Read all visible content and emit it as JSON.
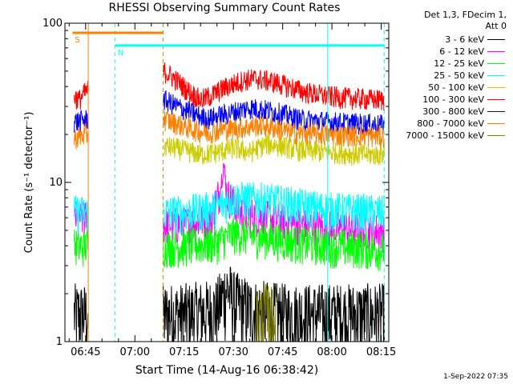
{
  "chart_data": {
    "type": "line",
    "title": "RHESSI Observing Summary Count Rates",
    "xlabel": "Start Time (14-Aug-16 06:38:42)",
    "ylabel": "Count Rate (s⁻¹ detector⁻¹)",
    "yscale": "log",
    "ylim": [
      1,
      100
    ],
    "xlim_minutes": [
      38.7,
      137.3
    ],
    "xticks": [
      {
        "label": "06:45",
        "minute": 45
      },
      {
        "label": "07:00",
        "minute": 60
      },
      {
        "label": "07:15",
        "minute": 75
      },
      {
        "label": "07:30",
        "minute": 90
      },
      {
        "label": "07:45",
        "minute": 105
      },
      {
        "label": "08:00",
        "minute": 120
      },
      {
        "label": "08:15",
        "minute": 135
      }
    ],
    "yticks": [
      {
        "label": "1",
        "value": 1
      },
      {
        "label": "10",
        "value": 10
      },
      {
        "label": "100",
        "value": 100
      }
    ],
    "grid": false,
    "legend_placement": "top-right",
    "legend_header": [
      "Det 1,3, FDecim 1,",
      "Att 0"
    ],
    "gaps": [
      [
        45.8,
        68.6
      ]
    ],
    "series": [
      {
        "name": "3 - 6 keV",
        "color": "#000000",
        "points": [
          [
            41.5,
            1.5
          ],
          [
            45.5,
            1.5
          ],
          [
            69,
            1.5
          ],
          [
            75,
            1.5
          ],
          [
            85,
            1.6
          ],
          [
            88,
            2.2
          ],
          [
            90,
            1.8
          ],
          [
            95,
            1.6
          ],
          [
            105,
            1.5
          ],
          [
            120,
            1.5
          ],
          [
            136,
            1.5
          ]
        ]
      },
      {
        "name": "6 - 12 keV",
        "color": "#ff00ff",
        "points": [
          [
            41.5,
            6.0
          ],
          [
            45.5,
            6.0
          ],
          [
            69,
            5.5
          ],
          [
            75,
            5.5
          ],
          [
            83,
            6.0
          ],
          [
            86,
            9.0
          ],
          [
            87,
            13.0
          ],
          [
            88,
            8.5
          ],
          [
            92,
            6.5
          ],
          [
            100,
            6.0
          ],
          [
            110,
            5.5
          ],
          [
            120,
            5.2
          ],
          [
            136,
            5.0
          ]
        ]
      },
      {
        "name": "12 - 25 keV",
        "color": "#00ff00",
        "points": [
          [
            41.5,
            4.0
          ],
          [
            45.5,
            4.0
          ],
          [
            69,
            4.0
          ],
          [
            75,
            4.0
          ],
          [
            85,
            4.2
          ],
          [
            90,
            4.8
          ],
          [
            100,
            4.5
          ],
          [
            110,
            4.2
          ],
          [
            120,
            4.0
          ],
          [
            136,
            3.8
          ]
        ]
      },
      {
        "name": "25 - 50 keV",
        "color": "#00ffff",
        "points": [
          [
            41.5,
            6.5
          ],
          [
            45.5,
            6.5
          ],
          [
            69,
            6.5
          ],
          [
            75,
            6.5
          ],
          [
            85,
            7.0
          ],
          [
            90,
            8.0
          ],
          [
            100,
            7.8
          ],
          [
            110,
            7.2
          ],
          [
            120,
            6.8
          ],
          [
            136,
            6.5
          ]
        ]
      },
      {
        "name": "50 - 100 keV",
        "color": "#cccc00",
        "points": [
          [
            69,
            17.0
          ],
          [
            75,
            16.0
          ],
          [
            80,
            15.0
          ],
          [
            85,
            15.5
          ],
          [
            90,
            16.5
          ],
          [
            95,
            15.5
          ],
          [
            100,
            17.5
          ],
          [
            105,
            17.0
          ],
          [
            110,
            16.0
          ],
          [
            120,
            15.5
          ],
          [
            130,
            15.0
          ],
          [
            136,
            15.0
          ]
        ]
      },
      {
        "name": "100 - 300 keV",
        "color": "#ff0000",
        "points": [
          [
            41.5,
            35.0
          ],
          [
            43,
            33.0
          ],
          [
            45.5,
            38.0
          ],
          [
            69,
            50.0
          ],
          [
            72,
            45.0
          ],
          [
            76,
            38.0
          ],
          [
            80,
            33.0
          ],
          [
            83,
            35.0
          ],
          [
            88,
            40.0
          ],
          [
            93,
            44.0
          ],
          [
            97,
            45.0
          ],
          [
            102,
            43.0
          ],
          [
            107,
            40.0
          ],
          [
            112,
            37.0
          ],
          [
            118,
            35.0
          ],
          [
            125,
            34.0
          ],
          [
            136,
            33.0
          ]
        ]
      },
      {
        "name": "300 - 800 keV",
        "color": "#0000ff",
        "points": [
          [
            41.5,
            24.0
          ],
          [
            45.5,
            25.0
          ],
          [
            69,
            33.0
          ],
          [
            73,
            30.0
          ],
          [
            78,
            27.0
          ],
          [
            82,
            25.0
          ],
          [
            88,
            27.0
          ],
          [
            95,
            29.5
          ],
          [
            100,
            28.5
          ],
          [
            105,
            27.0
          ],
          [
            110,
            25.0
          ],
          [
            120,
            24.0
          ],
          [
            136,
            23.0
          ]
        ]
      },
      {
        "name": "800 - 7000 keV",
        "color": "#ff8000",
        "points": [
          [
            41.5,
            19.0
          ],
          [
            45.5,
            20.0
          ],
          [
            69,
            25.0
          ],
          [
            74,
            23.0
          ],
          [
            78,
            21.5
          ],
          [
            82,
            20.5
          ],
          [
            86,
            21.5
          ],
          [
            92,
            22.0
          ],
          [
            98,
            23.0
          ],
          [
            103,
            22.0
          ],
          [
            108,
            20.5
          ],
          [
            120,
            20.0
          ],
          [
            136,
            19.5
          ]
        ]
      },
      {
        "name": "7000 - 15000 keV",
        "color": "#808000",
        "points": [
          [
            97,
            1.4
          ],
          [
            100,
            1.5
          ],
          [
            103,
            1.4
          ]
        ]
      }
    ],
    "annotations": [
      {
        "text": "S",
        "color": "#ff8000",
        "bar_minutes": [
          41.0,
          68.5
        ],
        "level": 0.97
      },
      {
        "text": "N",
        "color": "#00ffff",
        "bar_minutes": [
          54.0,
          121.0
        ],
        "level": 0.93
      },
      {
        "text": "",
        "color": "#00ffff",
        "bar_minutes": [
          118.5,
          136.0
        ],
        "level": 0.93
      }
    ],
    "vertical_lines": [
      {
        "minute": 45.8,
        "color": "#ff8000",
        "style": "solid"
      },
      {
        "minute": 54.0,
        "color": "#00ffff",
        "style": "dashed"
      },
      {
        "minute": 68.6,
        "color": "#ff8000",
        "style": "dashed"
      },
      {
        "minute": 118.7,
        "color": "#00ffff",
        "style": "solid"
      },
      {
        "minute": 136.0,
        "color": "#00ffff",
        "style": "dashed"
      }
    ]
  },
  "footer": {
    "timestamp": "1-Sep-2022 07:35"
  }
}
